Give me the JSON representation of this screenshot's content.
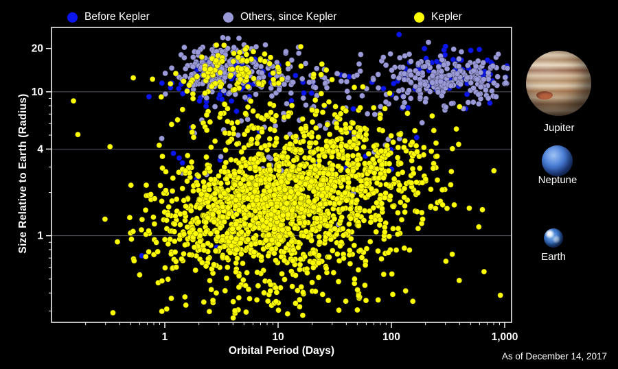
{
  "legend": {
    "items": [
      {
        "label": "Before Kepler",
        "color": "#0b16ee"
      },
      {
        "label": "Others, since Kepler",
        "color": "#9a9ad8"
      },
      {
        "label": "Kepler",
        "color": "#ffff00"
      }
    ]
  },
  "chart_data": {
    "type": "scatter",
    "xlabel": "Orbital Period (Days)",
    "ylabel": "Size Relative to Earth (Radius)",
    "x_scale": "log",
    "y_scale": "log",
    "xlim": [
      0.1,
      1150
    ],
    "ylim": [
      0.25,
      28
    ],
    "x_ticks": [
      {
        "value": 1,
        "label": "1"
      },
      {
        "value": 10,
        "label": "10"
      },
      {
        "value": 100,
        "label": "100"
      },
      {
        "value": 1000,
        "label": "1,000"
      }
    ],
    "y_ticks": [
      {
        "value": 1,
        "label": "1"
      },
      {
        "value": 4,
        "label": "4"
      },
      {
        "value": 10,
        "label": "10"
      },
      {
        "value": 20,
        "label": "20"
      }
    ],
    "gridlines_y": [
      1,
      4,
      10
    ],
    "point_radius": 4,
    "seed": 42,
    "series": [
      {
        "name": "Before Kepler",
        "color": "#0b16ee",
        "clusters": [
          {
            "cx": 0.45,
            "cy": 1.08,
            "sx": 0.32,
            "sy": 0.1,
            "n": 55
          },
          {
            "cx": 2.55,
            "cy": 1.12,
            "sx": 0.3,
            "sy": 0.09,
            "n": 65
          },
          {
            "cx": 1.6,
            "cy": 0.85,
            "sx": 0.65,
            "sy": 0.28,
            "n": 30
          },
          {
            "cx": 0.6,
            "cy": 0.45,
            "sx": 0.6,
            "sy": 0.35,
            "n": 12
          }
        ]
      },
      {
        "name": "Others, since Kepler",
        "color": "#9a9ad8",
        "clusters": [
          {
            "cx": 0.45,
            "cy": 1.17,
            "sx": 0.18,
            "sy": 0.07,
            "n": 140
          },
          {
            "cx": 0.75,
            "cy": 1.1,
            "sx": 0.35,
            "sy": 0.1,
            "n": 90
          },
          {
            "cx": 2.55,
            "cy": 1.1,
            "sx": 0.33,
            "sy": 0.08,
            "n": 200
          },
          {
            "cx": 2.1,
            "cy": 1.05,
            "sx": 0.3,
            "sy": 0.12,
            "n": 40
          },
          {
            "cx": 1.5,
            "cy": 0.9,
            "sx": 0.55,
            "sy": 0.22,
            "n": 60
          },
          {
            "cx": 1.0,
            "cy": 0.55,
            "sx": 0.6,
            "sy": 0.3,
            "n": 25
          }
        ]
      },
      {
        "name": "Kepler",
        "color": "#ffff00",
        "clusters": [
          {
            "cx": 0.6,
            "cy": 0.16,
            "sx": 0.38,
            "sy": 0.16,
            "n": 380
          },
          {
            "cx": 1.0,
            "cy": 0.3,
            "sx": 0.36,
            "sy": 0.17,
            "n": 480
          },
          {
            "cx": 1.45,
            "cy": 0.4,
            "sx": 0.36,
            "sy": 0.17,
            "n": 360
          },
          {
            "cx": 1.95,
            "cy": 0.45,
            "sx": 0.3,
            "sy": 0.2,
            "n": 130
          },
          {
            "cx": 0.9,
            "cy": -0.02,
            "sx": 0.55,
            "sy": 0.14,
            "n": 260
          },
          {
            "cx": 0.85,
            "cy": -0.33,
            "sx": 0.55,
            "sy": 0.18,
            "n": 130
          },
          {
            "cx": 0.6,
            "cy": 1.13,
            "sx": 0.28,
            "sy": 0.08,
            "n": 100
          },
          {
            "cx": 1.0,
            "cy": 0.78,
            "sx": 0.45,
            "sy": 0.16,
            "n": 110
          },
          {
            "cx": 1.3,
            "cy": 0.25,
            "sx": 0.85,
            "sy": 0.4,
            "n": 170
          }
        ]
      }
    ]
  },
  "planets": [
    {
      "name": "Jupiter"
    },
    {
      "name": "Neptune"
    },
    {
      "name": "Earth"
    }
  ],
  "footnote": "As of December 14, 2017"
}
